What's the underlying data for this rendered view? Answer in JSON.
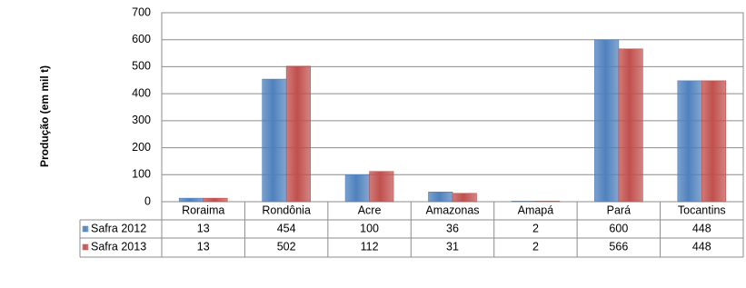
{
  "chart_data": {
    "type": "bar",
    "y_label": "Produção (em mil t)",
    "categories": [
      "Roraima",
      "Rondônia",
      "Acre",
      "Amazonas",
      "Amapá",
      "Pará",
      "Tocantins"
    ],
    "series": [
      {
        "name": "Safra 2012",
        "color": "#4f81bd",
        "values": [
          13,
          454,
          100,
          36,
          2,
          600,
          448
        ]
      },
      {
        "name": "Safra 2013",
        "color": "#c0504d",
        "values": [
          13,
          502,
          112,
          31,
          2,
          566,
          448
        ]
      }
    ],
    "ylim": [
      0,
      700
    ],
    "yticks": [
      0,
      100,
      200,
      300,
      400,
      500,
      600,
      700
    ],
    "grid": true,
    "data_table": true
  }
}
